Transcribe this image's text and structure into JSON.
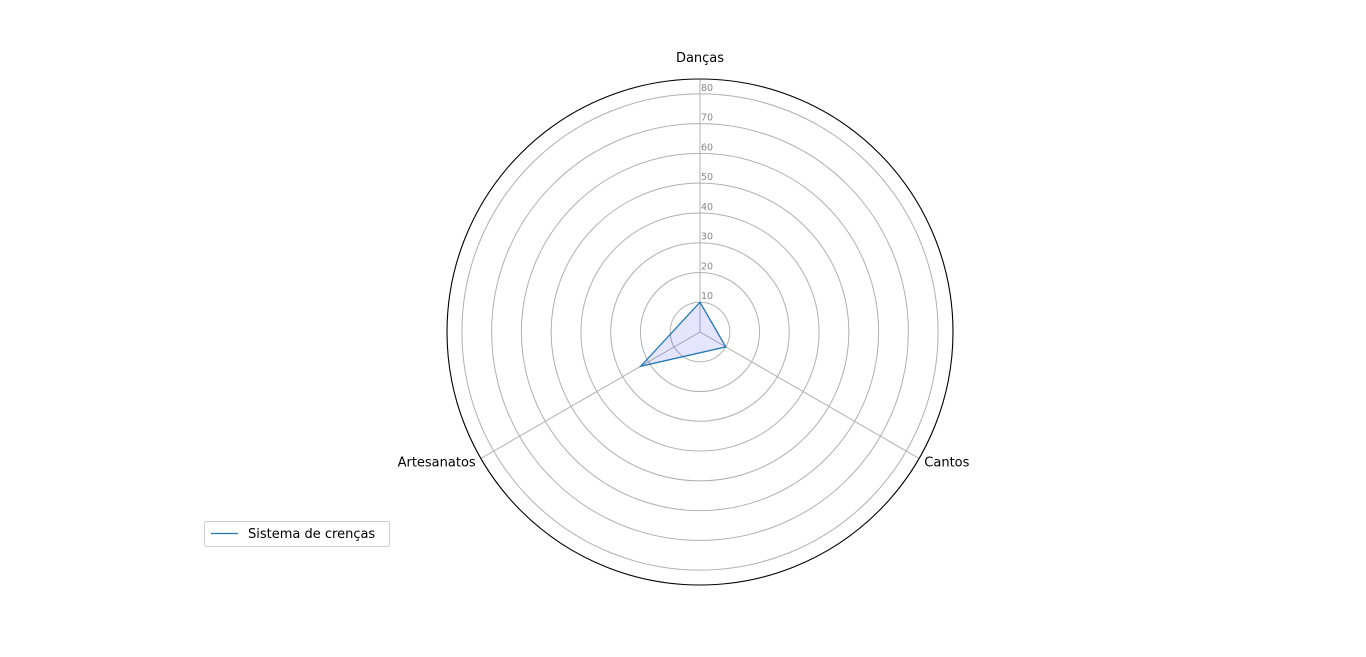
{
  "chart_data": {
    "type": "radar",
    "categories": [
      "Danças",
      "Cantos",
      "Artesanatos"
    ],
    "series": [
      {
        "name": "Sistema de crenças",
        "values": [
          10,
          10,
          23
        ],
        "color": "#1f77b4",
        "fill_color": "#0000ff"
      }
    ],
    "rlim": [
      0,
      85
    ],
    "rticks": [
      10,
      20,
      30,
      40,
      50,
      60,
      70,
      80
    ],
    "rtick_labels": [
      "10",
      "20",
      "30",
      "40",
      "50",
      "60",
      "70",
      "80"
    ],
    "grid": true,
    "legend": "lower-left",
    "grid_color": "#b0b0b0",
    "outline_color": "#000000"
  }
}
